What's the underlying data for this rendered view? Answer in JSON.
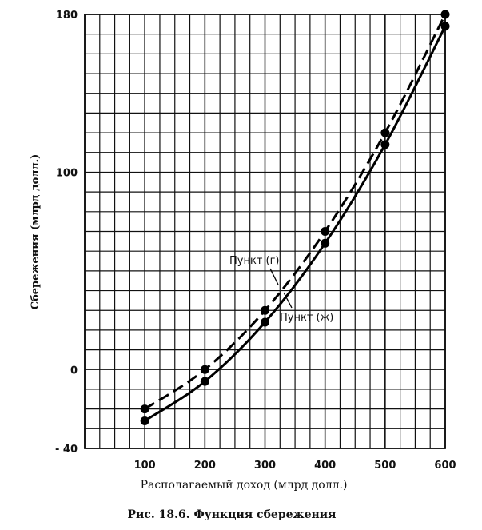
{
  "chart_data": {
    "type": "line",
    "xlabel": "Располагаемый доход (млрд долл.)",
    "ylabel": "Сбережения (млрд долл.)",
    "caption": "Рис. 18.6. Функция сбережения",
    "xlim": [
      0,
      600
    ],
    "ylim": [
      -40,
      180
    ],
    "x_ticks": [
      "100",
      "200",
      "300",
      "400",
      "500",
      "600"
    ],
    "y_ticks": [
      "- 40",
      "0",
      "100",
      "180"
    ],
    "grid": true,
    "series": [
      {
        "name": "Пункт (г)",
        "style": "dashed",
        "x": [
          100,
          200,
          300,
          400,
          500,
          600
        ],
        "y": [
          -20,
          0,
          30,
          70,
          120,
          180
        ]
      },
      {
        "name": "Пункт (ж)",
        "style": "solid",
        "x": [
          100,
          200,
          300,
          400,
          500,
          600
        ],
        "y": [
          -26,
          -6,
          24,
          64,
          114,
          174
        ]
      }
    ]
  }
}
